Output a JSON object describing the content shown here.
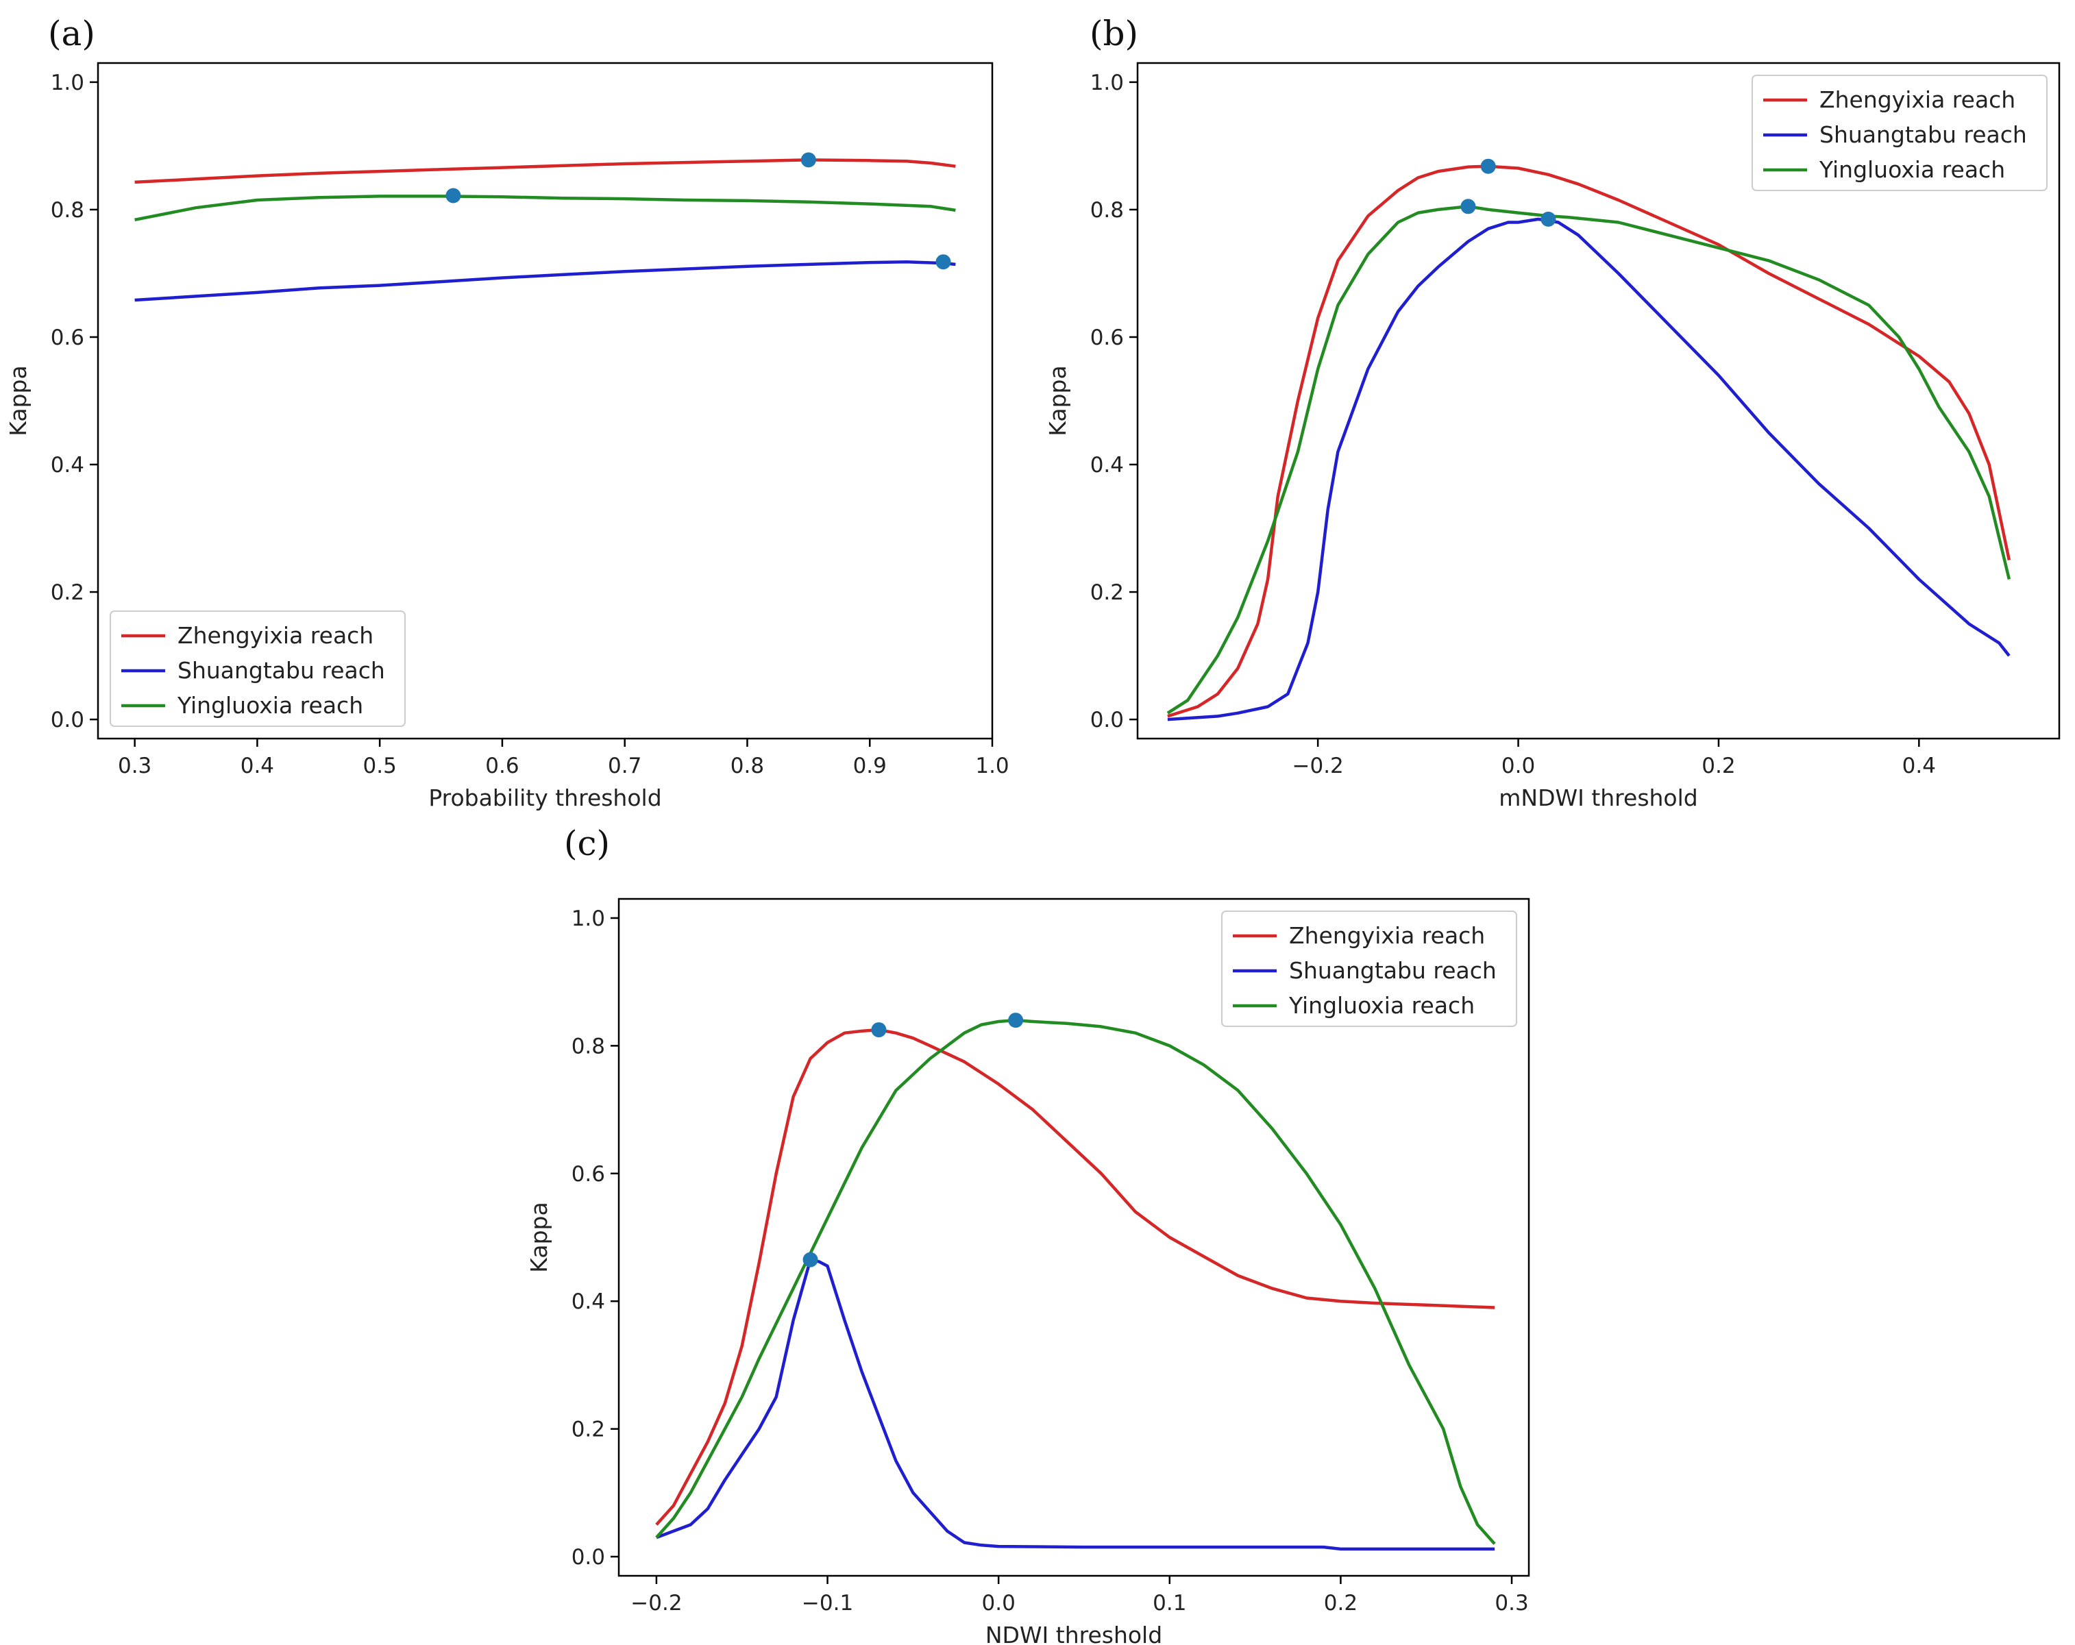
{
  "chart_data": [
    {
      "type": "line",
      "panel_label": "(a)",
      "xlabel": "Probability threshold",
      "ylabel": "Kappa",
      "xlim": [
        0.27,
        1.0
      ],
      "ylim": [
        -0.03,
        1.03
      ],
      "xticks": [
        0.3,
        0.4,
        0.5,
        0.6,
        0.7,
        0.8,
        0.9,
        1.0
      ],
      "xtick_labels": [
        "0.3",
        "0.4",
        "0.5",
        "0.6",
        "0.7",
        "0.8",
        "0.9",
        "1.0"
      ],
      "yticks": [
        0.0,
        0.2,
        0.4,
        0.6,
        0.8,
        1.0
      ],
      "ytick_labels": [
        "0.0",
        "0.2",
        "0.4",
        "0.6",
        "0.8",
        "1.0"
      ],
      "legend": "lower-left",
      "grid": false,
      "series": [
        {
          "name": "Zhengyixia reach",
          "color": "#d62728",
          "x": [
            0.3,
            0.35,
            0.4,
            0.45,
            0.5,
            0.55,
            0.6,
            0.65,
            0.7,
            0.75,
            0.8,
            0.85,
            0.9,
            0.93,
            0.95,
            0.97
          ],
          "y": [
            0.843,
            0.848,
            0.853,
            0.857,
            0.86,
            0.863,
            0.866,
            0.869,
            0.872,
            0.874,
            0.876,
            0.878,
            0.877,
            0.876,
            0.873,
            0.868
          ]
        },
        {
          "name": "Shuangtabu reach",
          "color": "#1f1fd0",
          "x": [
            0.3,
            0.35,
            0.4,
            0.45,
            0.5,
            0.55,
            0.6,
            0.65,
            0.7,
            0.75,
            0.8,
            0.85,
            0.9,
            0.93,
            0.96,
            0.97
          ],
          "y": [
            0.658,
            0.664,
            0.67,
            0.677,
            0.681,
            0.687,
            0.693,
            0.698,
            0.703,
            0.707,
            0.711,
            0.714,
            0.717,
            0.718,
            0.716,
            0.714
          ]
        },
        {
          "name": "Yingluoxia reach",
          "color": "#228b22",
          "x": [
            0.3,
            0.35,
            0.4,
            0.45,
            0.5,
            0.55,
            0.6,
            0.65,
            0.7,
            0.75,
            0.8,
            0.85,
            0.9,
            0.95,
            0.97
          ],
          "y": [
            0.784,
            0.803,
            0.815,
            0.819,
            0.821,
            0.821,
            0.82,
            0.818,
            0.817,
            0.815,
            0.814,
            0.812,
            0.809,
            0.805,
            0.799
          ]
        }
      ],
      "markers": [
        {
          "x": 0.85,
          "y": 0.878
        },
        {
          "x": 0.56,
          "y": 0.822
        },
        {
          "x": 0.96,
          "y": 0.718
        }
      ]
    },
    {
      "type": "line",
      "panel_label": "(b)",
      "xlabel": "mNDWI threshold",
      "ylabel": "Kappa",
      "xlim": [
        -0.38,
        0.54
      ],
      "ylim": [
        -0.03,
        1.03
      ],
      "xticks": [
        -0.2,
        0.0,
        0.2,
        0.4
      ],
      "xtick_labels": [
        "−0.2",
        "0.0",
        "0.2",
        "0.4"
      ],
      "yticks": [
        0.0,
        0.2,
        0.4,
        0.6,
        0.8,
        1.0
      ],
      "ytick_labels": [
        "0.0",
        "0.2",
        "0.4",
        "0.6",
        "0.8",
        "1.0"
      ],
      "legend": "top-right",
      "grid": false,
      "series": [
        {
          "name": "Zhengyixia reach",
          "color": "#d62728",
          "x": [
            -0.35,
            -0.32,
            -0.3,
            -0.28,
            -0.26,
            -0.25,
            -0.24,
            -0.22,
            -0.2,
            -0.18,
            -0.15,
            -0.12,
            -0.1,
            -0.08,
            -0.05,
            -0.03,
            0.0,
            0.03,
            0.06,
            0.1,
            0.15,
            0.2,
            0.25,
            0.3,
            0.35,
            0.4,
            0.43,
            0.45,
            0.47,
            0.49
          ],
          "y": [
            0.005,
            0.02,
            0.04,
            0.08,
            0.15,
            0.22,
            0.35,
            0.5,
            0.63,
            0.72,
            0.79,
            0.83,
            0.85,
            0.86,
            0.867,
            0.868,
            0.865,
            0.855,
            0.84,
            0.815,
            0.78,
            0.745,
            0.7,
            0.66,
            0.62,
            0.57,
            0.53,
            0.48,
            0.4,
            0.25
          ]
        },
        {
          "name": "Shuangtabu reach",
          "color": "#1f1fd0",
          "x": [
            -0.35,
            -0.3,
            -0.28,
            -0.25,
            -0.23,
            -0.21,
            -0.2,
            -0.19,
            -0.18,
            -0.15,
            -0.12,
            -0.1,
            -0.08,
            -0.05,
            -0.03,
            -0.01,
            0.0,
            0.02,
            0.04,
            0.06,
            0.1,
            0.15,
            0.2,
            0.25,
            0.3,
            0.35,
            0.4,
            0.45,
            0.48,
            0.49
          ],
          "y": [
            0.0,
            0.005,
            0.01,
            0.02,
            0.04,
            0.12,
            0.2,
            0.33,
            0.42,
            0.55,
            0.64,
            0.68,
            0.71,
            0.75,
            0.77,
            0.78,
            0.78,
            0.785,
            0.78,
            0.76,
            0.7,
            0.62,
            0.54,
            0.45,
            0.37,
            0.3,
            0.22,
            0.15,
            0.12,
            0.1
          ]
        },
        {
          "name": "Yingluoxia reach",
          "color": "#228b22",
          "x": [
            -0.35,
            -0.33,
            -0.3,
            -0.28,
            -0.25,
            -0.22,
            -0.2,
            -0.18,
            -0.15,
            -0.12,
            -0.1,
            -0.08,
            -0.05,
            -0.03,
            0.0,
            0.03,
            0.05,
            0.1,
            0.15,
            0.2,
            0.25,
            0.3,
            0.35,
            0.38,
            0.4,
            0.42,
            0.45,
            0.47,
            0.49
          ],
          "y": [
            0.01,
            0.03,
            0.1,
            0.16,
            0.28,
            0.42,
            0.55,
            0.65,
            0.73,
            0.78,
            0.795,
            0.8,
            0.805,
            0.8,
            0.795,
            0.79,
            0.788,
            0.78,
            0.76,
            0.74,
            0.72,
            0.69,
            0.65,
            0.6,
            0.55,
            0.49,
            0.42,
            0.35,
            0.22
          ]
        }
      ],
      "markers": [
        {
          "x": -0.03,
          "y": 0.868
        },
        {
          "x": -0.05,
          "y": 0.805
        },
        {
          "x": 0.03,
          "y": 0.785
        }
      ]
    },
    {
      "type": "line",
      "panel_label": "(c)",
      "xlabel": "NDWI threshold",
      "ylabel": "Kappa",
      "xlim": [
        -0.222,
        0.31
      ],
      "ylim": [
        -0.03,
        1.03
      ],
      "xticks": [
        -0.2,
        -0.1,
        0.0,
        0.1,
        0.2,
        0.3
      ],
      "xtick_labels": [
        "−0.2",
        "−0.1",
        "0.0",
        "0.1",
        "0.2",
        "0.3"
      ],
      "yticks": [
        0.0,
        0.2,
        0.4,
        0.6,
        0.8,
        1.0
      ],
      "ytick_labels": [
        "0.0",
        "0.2",
        "0.4",
        "0.6",
        "0.8",
        "1.0"
      ],
      "legend": "top-right",
      "grid": false,
      "series": [
        {
          "name": "Zhengyixia reach",
          "color": "#d62728",
          "x": [
            -0.2,
            -0.19,
            -0.18,
            -0.17,
            -0.16,
            -0.15,
            -0.14,
            -0.13,
            -0.12,
            -0.11,
            -0.1,
            -0.09,
            -0.08,
            -0.07,
            -0.06,
            -0.05,
            -0.04,
            -0.02,
            0.0,
            0.02,
            0.04,
            0.06,
            0.08,
            0.1,
            0.12,
            0.14,
            0.16,
            0.18,
            0.2,
            0.22,
            0.25,
            0.29
          ],
          "y": [
            0.05,
            0.08,
            0.13,
            0.18,
            0.24,
            0.33,
            0.46,
            0.6,
            0.72,
            0.78,
            0.805,
            0.82,
            0.823,
            0.825,
            0.82,
            0.812,
            0.8,
            0.775,
            0.74,
            0.7,
            0.65,
            0.6,
            0.54,
            0.5,
            0.47,
            0.44,
            0.42,
            0.405,
            0.4,
            0.397,
            0.394,
            0.39
          ]
        },
        {
          "name": "Shuangtabu reach",
          "color": "#1f1fd0",
          "x": [
            -0.2,
            -0.18,
            -0.17,
            -0.16,
            -0.15,
            -0.14,
            -0.13,
            -0.12,
            -0.11,
            -0.105,
            -0.1,
            -0.09,
            -0.08,
            -0.07,
            -0.06,
            -0.05,
            -0.04,
            -0.03,
            -0.02,
            -0.01,
            0.0,
            0.05,
            0.1,
            0.15,
            0.19,
            0.2,
            0.25,
            0.29
          ],
          "y": [
            0.03,
            0.05,
            0.075,
            0.12,
            0.16,
            0.2,
            0.25,
            0.37,
            0.465,
            0.462,
            0.455,
            0.37,
            0.29,
            0.22,
            0.15,
            0.1,
            0.07,
            0.04,
            0.022,
            0.018,
            0.016,
            0.015,
            0.015,
            0.015,
            0.015,
            0.012,
            0.012,
            0.012
          ]
        },
        {
          "name": "Yingluoxia reach",
          "color": "#228b22",
          "x": [
            -0.2,
            -0.19,
            -0.18,
            -0.17,
            -0.16,
            -0.15,
            -0.14,
            -0.12,
            -0.1,
            -0.08,
            -0.06,
            -0.04,
            -0.02,
            -0.01,
            0.0,
            0.01,
            0.02,
            0.04,
            0.06,
            0.08,
            0.1,
            0.12,
            0.14,
            0.16,
            0.18,
            0.2,
            0.22,
            0.24,
            0.26,
            0.27,
            0.28,
            0.29
          ],
          "y": [
            0.03,
            0.06,
            0.1,
            0.15,
            0.2,
            0.25,
            0.31,
            0.42,
            0.53,
            0.64,
            0.73,
            0.78,
            0.82,
            0.833,
            0.838,
            0.84,
            0.838,
            0.835,
            0.83,
            0.82,
            0.8,
            0.77,
            0.73,
            0.67,
            0.6,
            0.52,
            0.42,
            0.3,
            0.2,
            0.11,
            0.05,
            0.02
          ]
        }
      ],
      "markers": [
        {
          "x": -0.07,
          "y": 0.825
        },
        {
          "x": 0.01,
          "y": 0.84
        },
        {
          "x": -0.11,
          "y": 0.465
        }
      ]
    }
  ],
  "marker_color": "#1f77b4"
}
